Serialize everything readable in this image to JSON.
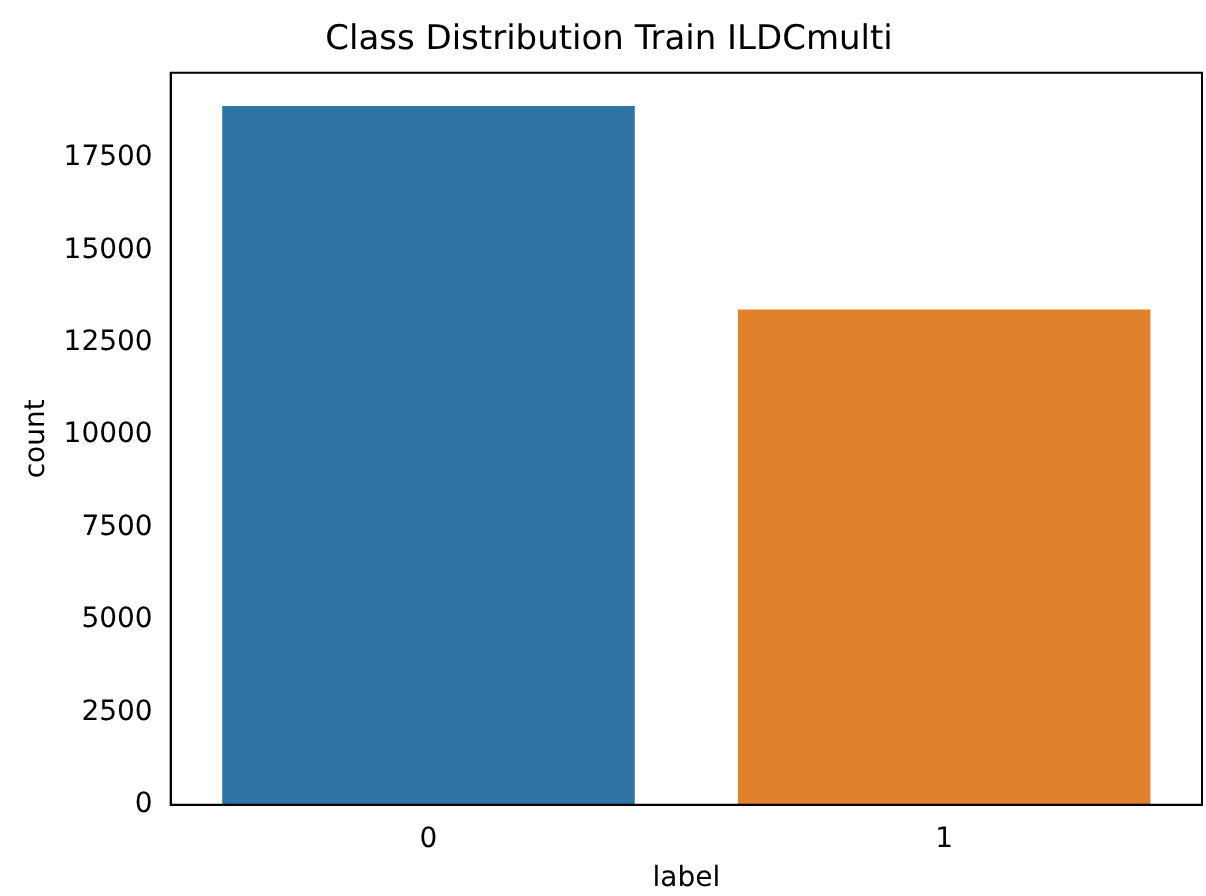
{
  "chart_data": {
    "type": "bar",
    "title": "Class Distribution Train ILDCmulti",
    "xlabel": "label",
    "ylabel": "count",
    "categories": [
      "0",
      "1"
    ],
    "colors": [
      "#2e75a6",
      "#e1812c"
    ],
    "values": [
      18900,
      13400
    ],
    "ylim": [
      0,
      19800
    ],
    "yticks": [
      0,
      2500,
      5000,
      7500,
      10000,
      12500,
      15000,
      17500
    ],
    "grid": false,
    "legend": false
  }
}
